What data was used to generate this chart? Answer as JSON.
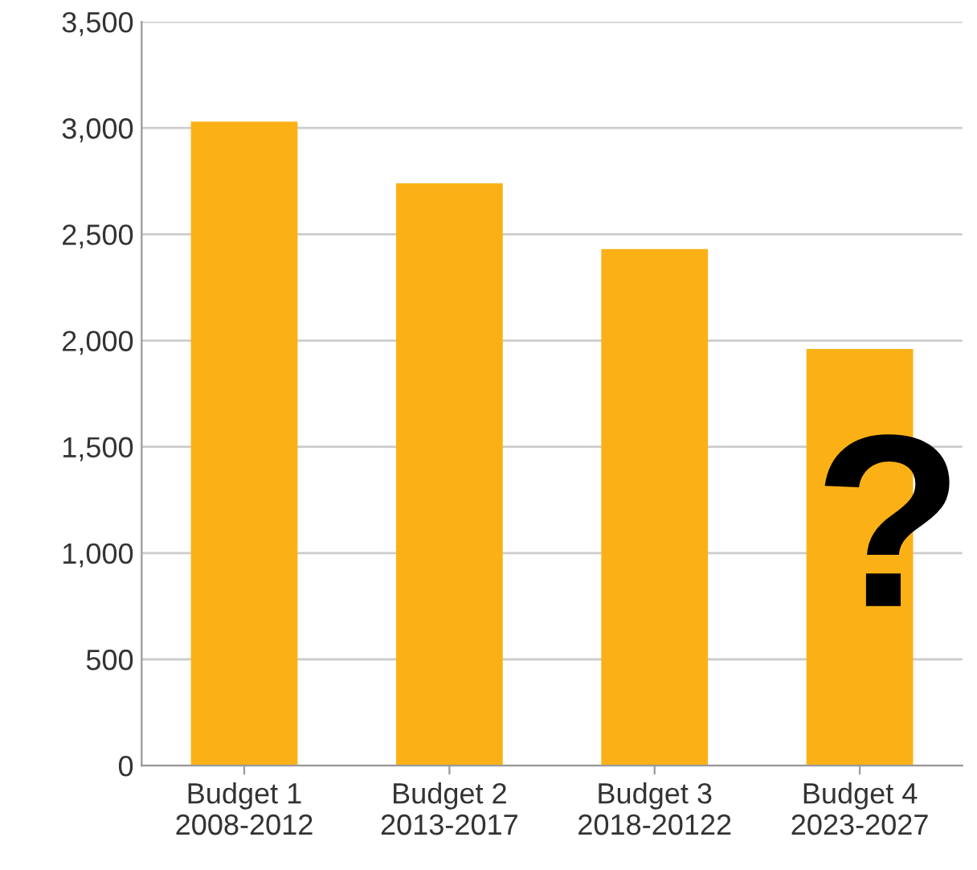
{
  "chart_data": {
    "type": "bar",
    "categories": [
      "Budget 1\n2008-2012",
      "Budget 2\n2013-2017",
      "Budget 3\n2018-20122",
      "Budget 4\n2023-2027"
    ],
    "values": [
      3030,
      2740,
      2430,
      1960
    ],
    "color": "#fbb116",
    "ylim": [
      0,
      3500
    ],
    "yticks": [
      0,
      {
        "value": 500,
        "label": "500"
      },
      {
        "value": 1000,
        "label": "1,000"
      },
      {
        "value": 1500,
        "label": "1,500"
      },
      {
        "value": 2000,
        "label": "2,000"
      },
      {
        "value": 2500,
        "label": "2,500"
      },
      {
        "value": 3000,
        "label": "3,000"
      },
      {
        "value": 3500,
        "label": "3,500"
      }
    ],
    "grid": "y",
    "annotations": [
      "?"
    ]
  }
}
